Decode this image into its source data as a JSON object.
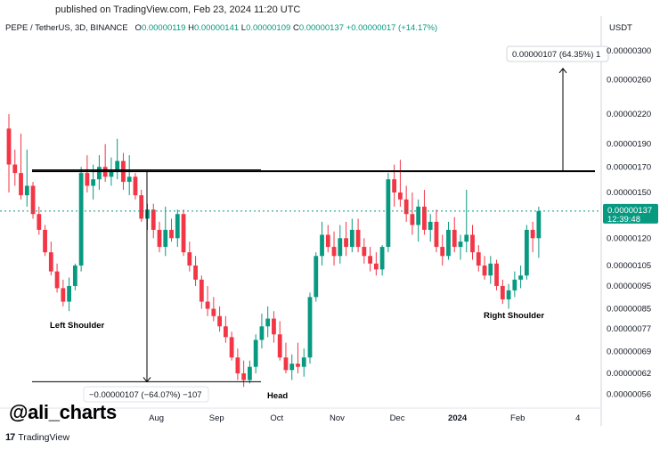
{
  "header": {
    "published": "published on TradingView.com, Feb 23, 2024 11:20 UTC",
    "symbol": "PEPE / TetherUS, 3D, BINANCE",
    "ohlc": {
      "o_label": "O",
      "o": "0.00000119",
      "h_label": "H",
      "h": "0.00000141",
      "l_label": "L",
      "l": "0.00000109",
      "c_label": "C",
      "c": "0.00000137",
      "change": "+0.00000017 (+14.17%)"
    },
    "currency": "USDT"
  },
  "chart_data": {
    "type": "candlestick",
    "y_ticks": [
      "0.00000300",
      "0.00000260",
      "0.00000220",
      "0.00000190",
      "0.00000170",
      "0.00000150",
      "0.00000120",
      "0.00000105",
      "0.00000095",
      "0.00000085",
      "0.00000077",
      "0.00000069",
      "0.00000062",
      "0.00000056"
    ],
    "y_tick_values": [
      3.0,
      2.6,
      2.2,
      1.9,
      1.7,
      1.5,
      1.2,
      1.05,
      0.95,
      0.85,
      0.77,
      0.69,
      0.62,
      0.56
    ],
    "y_unit_multiplier": 1e-06,
    "log_scale": true,
    "ylim": [
      0.53,
      3.2
    ],
    "x_tick_labels": [
      "Aug",
      "Sep",
      "Oct",
      "Nov",
      "Dec",
      "2024",
      "Feb",
      "4"
    ],
    "x_tick_candle_index": [
      24.5,
      34.5,
      44.5,
      54.5,
      64.5,
      74.5,
      84.5,
      94.5
    ],
    "bull_color": "#089981",
    "bear_color": "#f23645",
    "candles": [
      [
        2.05,
        2.2,
        1.5,
        1.72
      ],
      [
        1.72,
        1.85,
        1.55,
        1.65
      ],
      [
        1.65,
        2.0,
        1.45,
        1.48
      ],
      [
        1.48,
        1.85,
        1.4,
        1.55
      ],
      [
        1.55,
        1.58,
        1.32,
        1.35
      ],
      [
        1.35,
        1.4,
        1.22,
        1.25
      ],
      [
        1.25,
        1.28,
        1.1,
        1.12
      ],
      [
        1.12,
        1.18,
        1.0,
        1.02
      ],
      [
        1.02,
        1.06,
        0.92,
        0.94
      ],
      [
        0.94,
        0.98,
        0.86,
        0.88
      ],
      [
        0.88,
        0.99,
        0.84,
        0.95
      ],
      [
        0.95,
        1.06,
        0.93,
        1.05
      ],
      [
        1.05,
        1.7,
        1.02,
        1.65
      ],
      [
        1.65,
        1.8,
        1.5,
        1.55
      ],
      [
        1.55,
        1.72,
        1.45,
        1.6
      ],
      [
        1.6,
        1.8,
        1.52,
        1.7
      ],
      [
        1.7,
        1.9,
        1.58,
        1.62
      ],
      [
        1.62,
        1.78,
        1.55,
        1.67
      ],
      [
        1.67,
        1.95,
        1.6,
        1.75
      ],
      [
        1.75,
        1.82,
        1.52,
        1.58
      ],
      [
        1.58,
        1.8,
        1.48,
        1.62
      ],
      [
        1.62,
        1.65,
        1.45,
        1.48
      ],
      [
        1.48,
        1.52,
        1.3,
        1.32
      ],
      [
        1.32,
        1.42,
        1.25,
        1.38
      ],
      [
        1.38,
        1.42,
        1.2,
        1.25
      ],
      [
        1.25,
        1.3,
        1.12,
        1.15
      ],
      [
        1.15,
        1.4,
        1.1,
        1.25
      ],
      [
        1.25,
        1.32,
        1.18,
        1.2
      ],
      [
        1.2,
        1.38,
        1.15,
        1.35
      ],
      [
        1.35,
        1.38,
        1.1,
        1.12
      ],
      [
        1.12,
        1.18,
        1.02,
        1.05
      ],
      [
        1.05,
        1.1,
        0.95,
        0.98
      ],
      [
        0.98,
        1.0,
        0.85,
        0.88
      ],
      [
        0.88,
        0.95,
        0.82,
        0.85
      ],
      [
        0.85,
        0.9,
        0.8,
        0.82
      ],
      [
        0.82,
        0.86,
        0.76,
        0.78
      ],
      [
        0.78,
        0.82,
        0.72,
        0.74
      ],
      [
        0.74,
        0.76,
        0.66,
        0.67
      ],
      [
        0.67,
        0.7,
        0.6,
        0.62
      ],
      [
        0.62,
        0.66,
        0.58,
        0.6
      ],
      [
        0.6,
        0.66,
        0.59,
        0.64
      ],
      [
        0.64,
        0.75,
        0.62,
        0.73
      ],
      [
        0.73,
        0.83,
        0.7,
        0.78
      ],
      [
        0.78,
        0.86,
        0.74,
        0.81
      ],
      [
        0.81,
        0.84,
        0.72,
        0.75
      ],
      [
        0.75,
        0.8,
        0.66,
        0.67
      ],
      [
        0.67,
        0.72,
        0.62,
        0.63
      ],
      [
        0.63,
        0.68,
        0.6,
        0.65
      ],
      [
        0.65,
        0.72,
        0.62,
        0.64
      ],
      [
        0.64,
        0.7,
        0.61,
        0.67
      ],
      [
        0.67,
        0.92,
        0.65,
        0.9
      ],
      [
        0.9,
        1.12,
        0.88,
        1.1
      ],
      [
        1.1,
        1.3,
        1.05,
        1.22
      ],
      [
        1.22,
        1.28,
        1.12,
        1.15
      ],
      [
        1.15,
        1.24,
        1.05,
        1.1
      ],
      [
        1.1,
        1.28,
        1.06,
        1.2
      ],
      [
        1.2,
        1.3,
        1.1,
        1.15
      ],
      [
        1.15,
        1.32,
        1.12,
        1.25
      ],
      [
        1.25,
        1.32,
        1.12,
        1.15
      ],
      [
        1.15,
        1.2,
        1.06,
        1.1
      ],
      [
        1.1,
        1.15,
        1.02,
        1.06
      ],
      [
        1.06,
        1.12,
        1.0,
        1.03
      ],
      [
        1.03,
        1.16,
        1.0,
        1.15
      ],
      [
        1.15,
        1.65,
        1.12,
        1.6
      ],
      [
        1.6,
        1.72,
        1.4,
        1.5
      ],
      [
        1.5,
        1.76,
        1.4,
        1.45
      ],
      [
        1.45,
        1.55,
        1.3,
        1.35
      ],
      [
        1.35,
        1.5,
        1.22,
        1.28
      ],
      [
        1.28,
        1.45,
        1.18,
        1.4
      ],
      [
        1.4,
        1.52,
        1.22,
        1.25
      ],
      [
        1.25,
        1.35,
        1.18,
        1.3
      ],
      [
        1.3,
        1.38,
        1.12,
        1.15
      ],
      [
        1.15,
        1.22,
        1.05,
        1.1
      ],
      [
        1.1,
        1.3,
        1.08,
        1.25
      ],
      [
        1.25,
        1.33,
        1.12,
        1.15
      ],
      [
        1.15,
        1.22,
        1.08,
        1.18
      ],
      [
        1.18,
        1.52,
        1.12,
        1.22
      ],
      [
        1.22,
        1.28,
        1.08,
        1.12
      ],
      [
        1.12,
        1.16,
        1.02,
        1.05
      ],
      [
        1.05,
        1.1,
        0.98,
        1.0
      ],
      [
        1.0,
        1.1,
        0.96,
        1.06
      ],
      [
        1.06,
        1.08,
        0.93,
        0.95
      ],
      [
        0.95,
        0.98,
        0.87,
        0.89
      ],
      [
        0.89,
        0.96,
        0.85,
        0.93
      ],
      [
        0.93,
        1.02,
        0.9,
        0.98
      ],
      [
        0.98,
        1.05,
        0.94,
        1.0
      ],
      [
        1.0,
        1.28,
        0.98,
        1.25
      ],
      [
        1.25,
        1.3,
        1.12,
        1.2
      ],
      [
        1.2,
        1.4,
        1.09,
        1.37
      ]
    ],
    "annotations": {
      "left_shoulder": "Left Shoulder",
      "head": "Head",
      "right_shoulder": "Right Shoulder",
      "target_label": "0.00000107 (64.35%)",
      "target_label_suffix": "1",
      "drop_label": "−0.00000107 (−64.07%) −107",
      "neckline_price": 1.665,
      "target_price": 2.75,
      "head_low_price": 0.595,
      "dashed_price": 1.37
    },
    "last_price": {
      "value": "0.00000137",
      "countdown": "12:39:48",
      "color": "#089981"
    }
  },
  "watermark": {
    "handle": "@ali_charts",
    "brand": "TradingView"
  }
}
